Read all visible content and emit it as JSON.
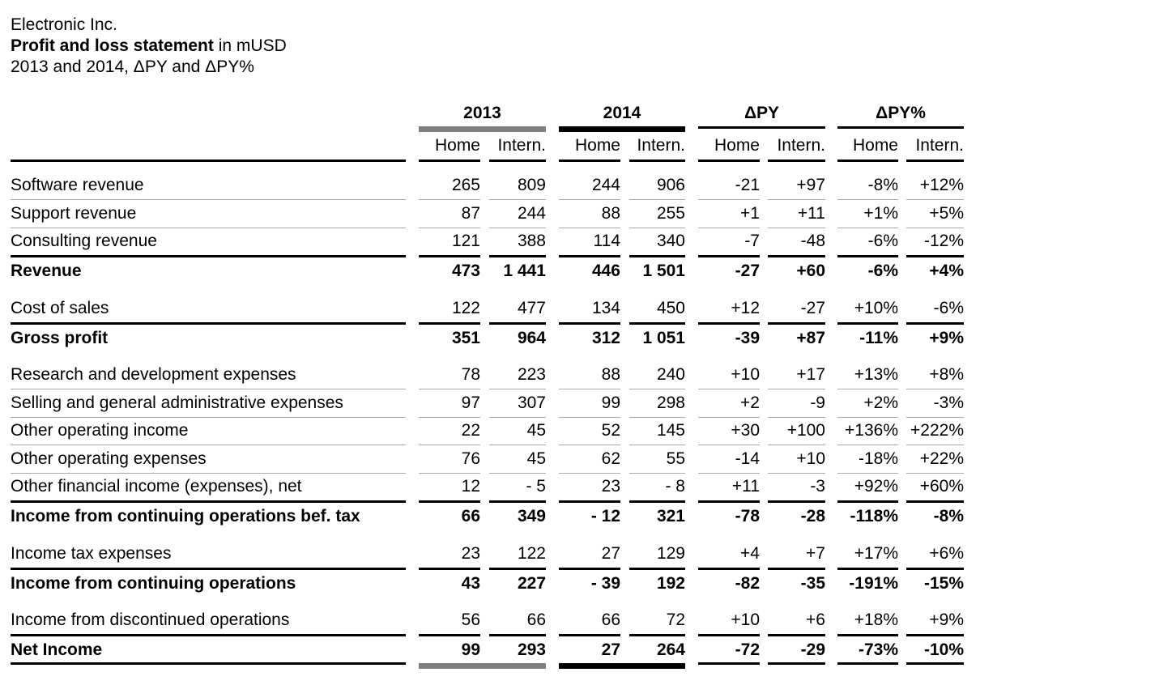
{
  "header": {
    "company": "Electronic Inc.",
    "title_bold": "Profit and loss statement",
    "title_rest": " in mUSD",
    "subtitle": "2013 and 2014, ΔPY and ΔPY%"
  },
  "column_groups": [
    "2013",
    "2014",
    "ΔPY",
    "ΔPY%"
  ],
  "subheaders": [
    "Home",
    "Intern.",
    "Home",
    "Intern.",
    "Home",
    "Intern.",
    "Home",
    "Intern."
  ],
  "rows": [
    {
      "label": "Software revenue",
      "bold": false,
      "values": [
        "265",
        "809",
        "244",
        "906",
        "-21",
        "+97",
        "-8%",
        "+12%"
      ]
    },
    {
      "label": "Support revenue",
      "bold": false,
      "values": [
        "87",
        "244",
        "88",
        "255",
        "+1",
        "+11",
        "+1%",
        "+5%"
      ]
    },
    {
      "label": "Consulting revenue",
      "bold": false,
      "values": [
        "121",
        "388",
        "114",
        "340",
        "-7",
        "-48",
        "-6%",
        "-12%"
      ]
    },
    {
      "label": "Revenue",
      "bold": true,
      "values": [
        "473",
        "1 441",
        "446",
        "1 501",
        "-27",
        "+60",
        "-6%",
        "+4%"
      ]
    },
    {
      "label": "Cost of sales",
      "bold": false,
      "values": [
        "122",
        "477",
        "134",
        "450",
        "+12",
        "-27",
        "+10%",
        "-6%"
      ]
    },
    {
      "label": "Gross profit",
      "bold": true,
      "values": [
        "351",
        "964",
        "312",
        "1 051",
        "-39",
        "+87",
        "-11%",
        "+9%"
      ]
    },
    {
      "label": "Research and development expenses",
      "bold": false,
      "values": [
        "78",
        "223",
        "88",
        "240",
        "+10",
        "+17",
        "+13%",
        "+8%"
      ]
    },
    {
      "label": "Selling and general administrative expenses",
      "bold": false,
      "values": [
        "97",
        "307",
        "99",
        "298",
        "+2",
        "-9",
        "+2%",
        "-3%"
      ]
    },
    {
      "label": "Other operating income",
      "bold": false,
      "values": [
        "22",
        "45",
        "52",
        "145",
        "+30",
        "+100",
        "+136%",
        "+222%"
      ]
    },
    {
      "label": "Other operating expenses",
      "bold": false,
      "values": [
        "76",
        "45",
        "62",
        "55",
        "-14",
        "+10",
        "-18%",
        "+22%"
      ]
    },
    {
      "label": "Other financial income (expenses), net",
      "bold": false,
      "values": [
        "12",
        "- 5",
        "23",
        "- 8",
        "+11",
        "-3",
        "+92%",
        "+60%"
      ]
    },
    {
      "label": "Income from continuing operations bef. tax",
      "bold": true,
      "values": [
        "66",
        "349",
        "- 12",
        "321",
        "-78",
        "-28",
        "-118%",
        "-8%"
      ]
    },
    {
      "label": "Income tax expenses",
      "bold": false,
      "values": [
        "23",
        "122",
        "27",
        "129",
        "+4",
        "+7",
        "+17%",
        "+6%"
      ]
    },
    {
      "label": "Income from continuing operations",
      "bold": true,
      "values": [
        "43",
        "227",
        "- 39",
        "192",
        "-82",
        "-35",
        "-191%",
        "-15%"
      ]
    },
    {
      "label": "Income from discontinued operations",
      "bold": false,
      "values": [
        "56",
        "66",
        "66",
        "72",
        "+10",
        "+6",
        "+18%",
        "+9%"
      ]
    },
    {
      "label": "Net Income",
      "bold": true,
      "values": [
        "99",
        "293",
        "27",
        "264",
        "-72",
        "-29",
        "-73%",
        "-10%"
      ]
    }
  ]
}
